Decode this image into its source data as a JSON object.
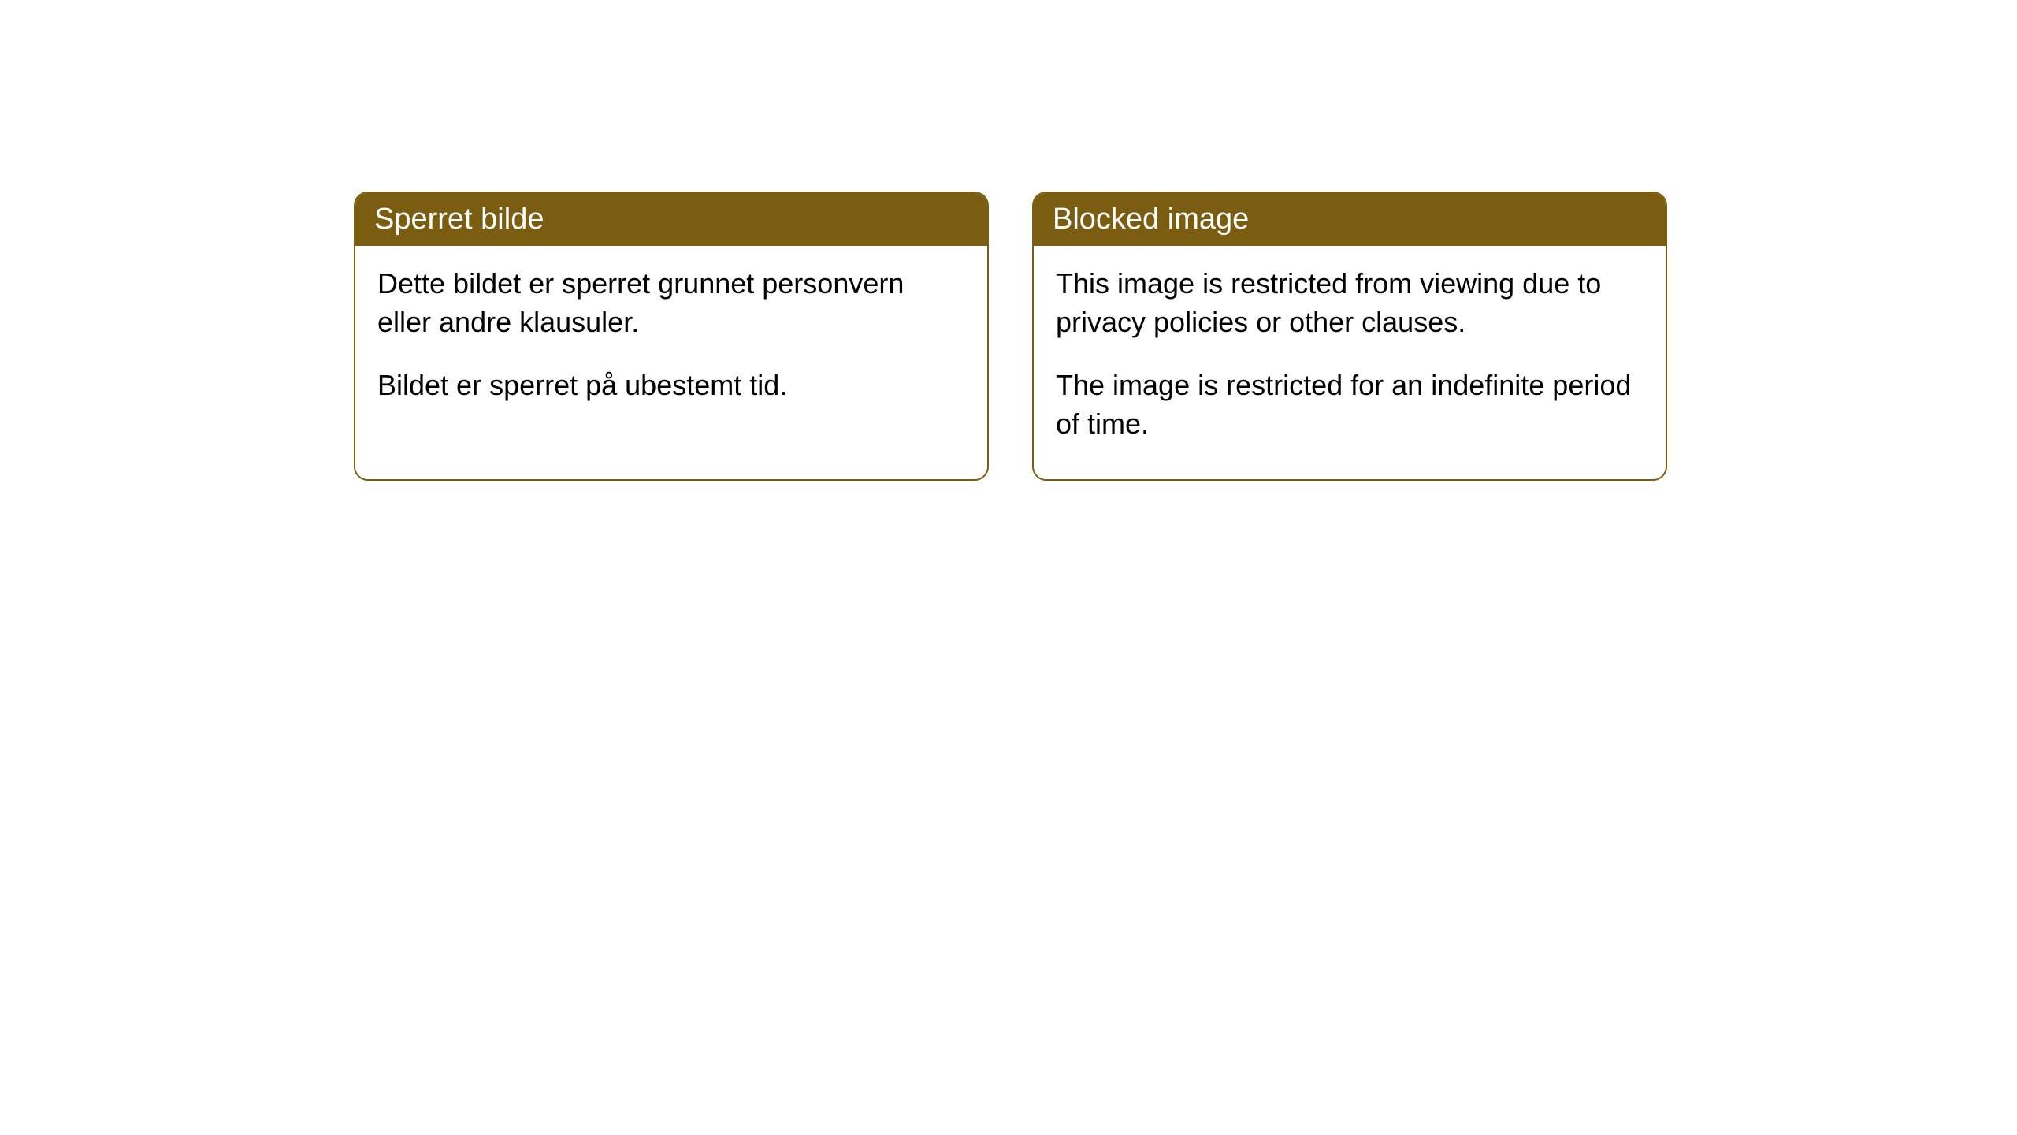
{
  "cards": [
    {
      "title": "Sperret bilde",
      "paragraph1": "Dette bildet er sperret grunnet personvern eller andre klausuler.",
      "paragraph2": "Bildet er sperret på ubestemt tid."
    },
    {
      "title": "Blocked image",
      "paragraph1": "This image is restricted from viewing due to privacy policies or other clauses.",
      "paragraph2": "The image is restricted for an indefinite period of time."
    }
  ],
  "style": {
    "header_bg": "#7a5d10",
    "header_text": "#ffffff",
    "border_color": "#7a5d10",
    "body_bg": "#ffffff",
    "body_text": "#000000",
    "border_radius": 18,
    "title_fontsize": 38,
    "body_fontsize": 36
  }
}
